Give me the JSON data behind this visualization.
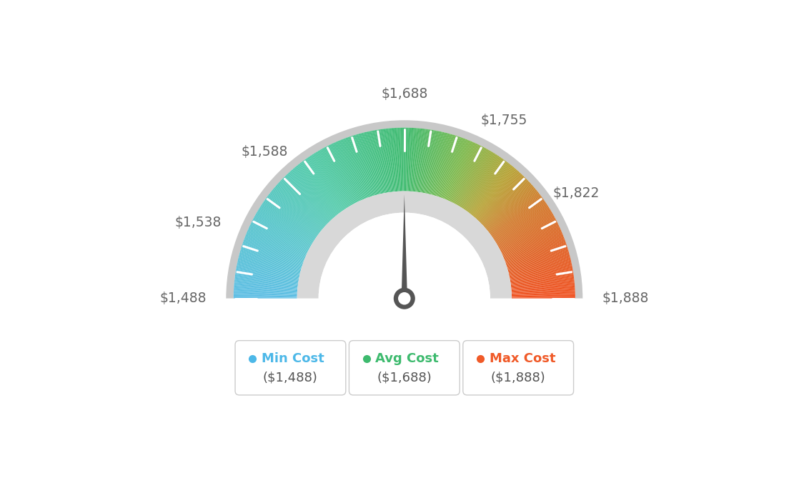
{
  "min_val": 1488,
  "max_val": 1888,
  "avg_val": 1688,
  "needle_value": 1688,
  "tick_labels": [
    "$1,488",
    "$1,538",
    "$1,588",
    "$1,688",
    "$1,755",
    "$1,822",
    "$1,888"
  ],
  "tick_values": [
    1488,
    1538,
    1588,
    1688,
    1755,
    1822,
    1888
  ],
  "colors_gradient": [
    [
      0.0,
      "#5bbde4"
    ],
    [
      0.15,
      "#55c4cc"
    ],
    [
      0.3,
      "#4ec9a8"
    ],
    [
      0.5,
      "#3dba6e"
    ],
    [
      0.62,
      "#7ab84a"
    ],
    [
      0.72,
      "#b5a030"
    ],
    [
      0.8,
      "#d07828"
    ],
    [
      0.9,
      "#e05f22"
    ],
    [
      1.0,
      "#f05020"
    ]
  ],
  "legend_labels": [
    "Min Cost",
    "Avg Cost",
    "Max Cost"
  ],
  "legend_subs": [
    "($1,488)",
    "($1,688)",
    "($1,888)"
  ],
  "legend_colors": [
    "#4db8e8",
    "#3dba6e",
    "#f05a28"
  ],
  "bg_color": "#ffffff",
  "outer_gray": "#c8c8c8",
  "inner_gray": "#d8d8d8",
  "needle_color": "#555555",
  "tick_label_color": "#666666"
}
